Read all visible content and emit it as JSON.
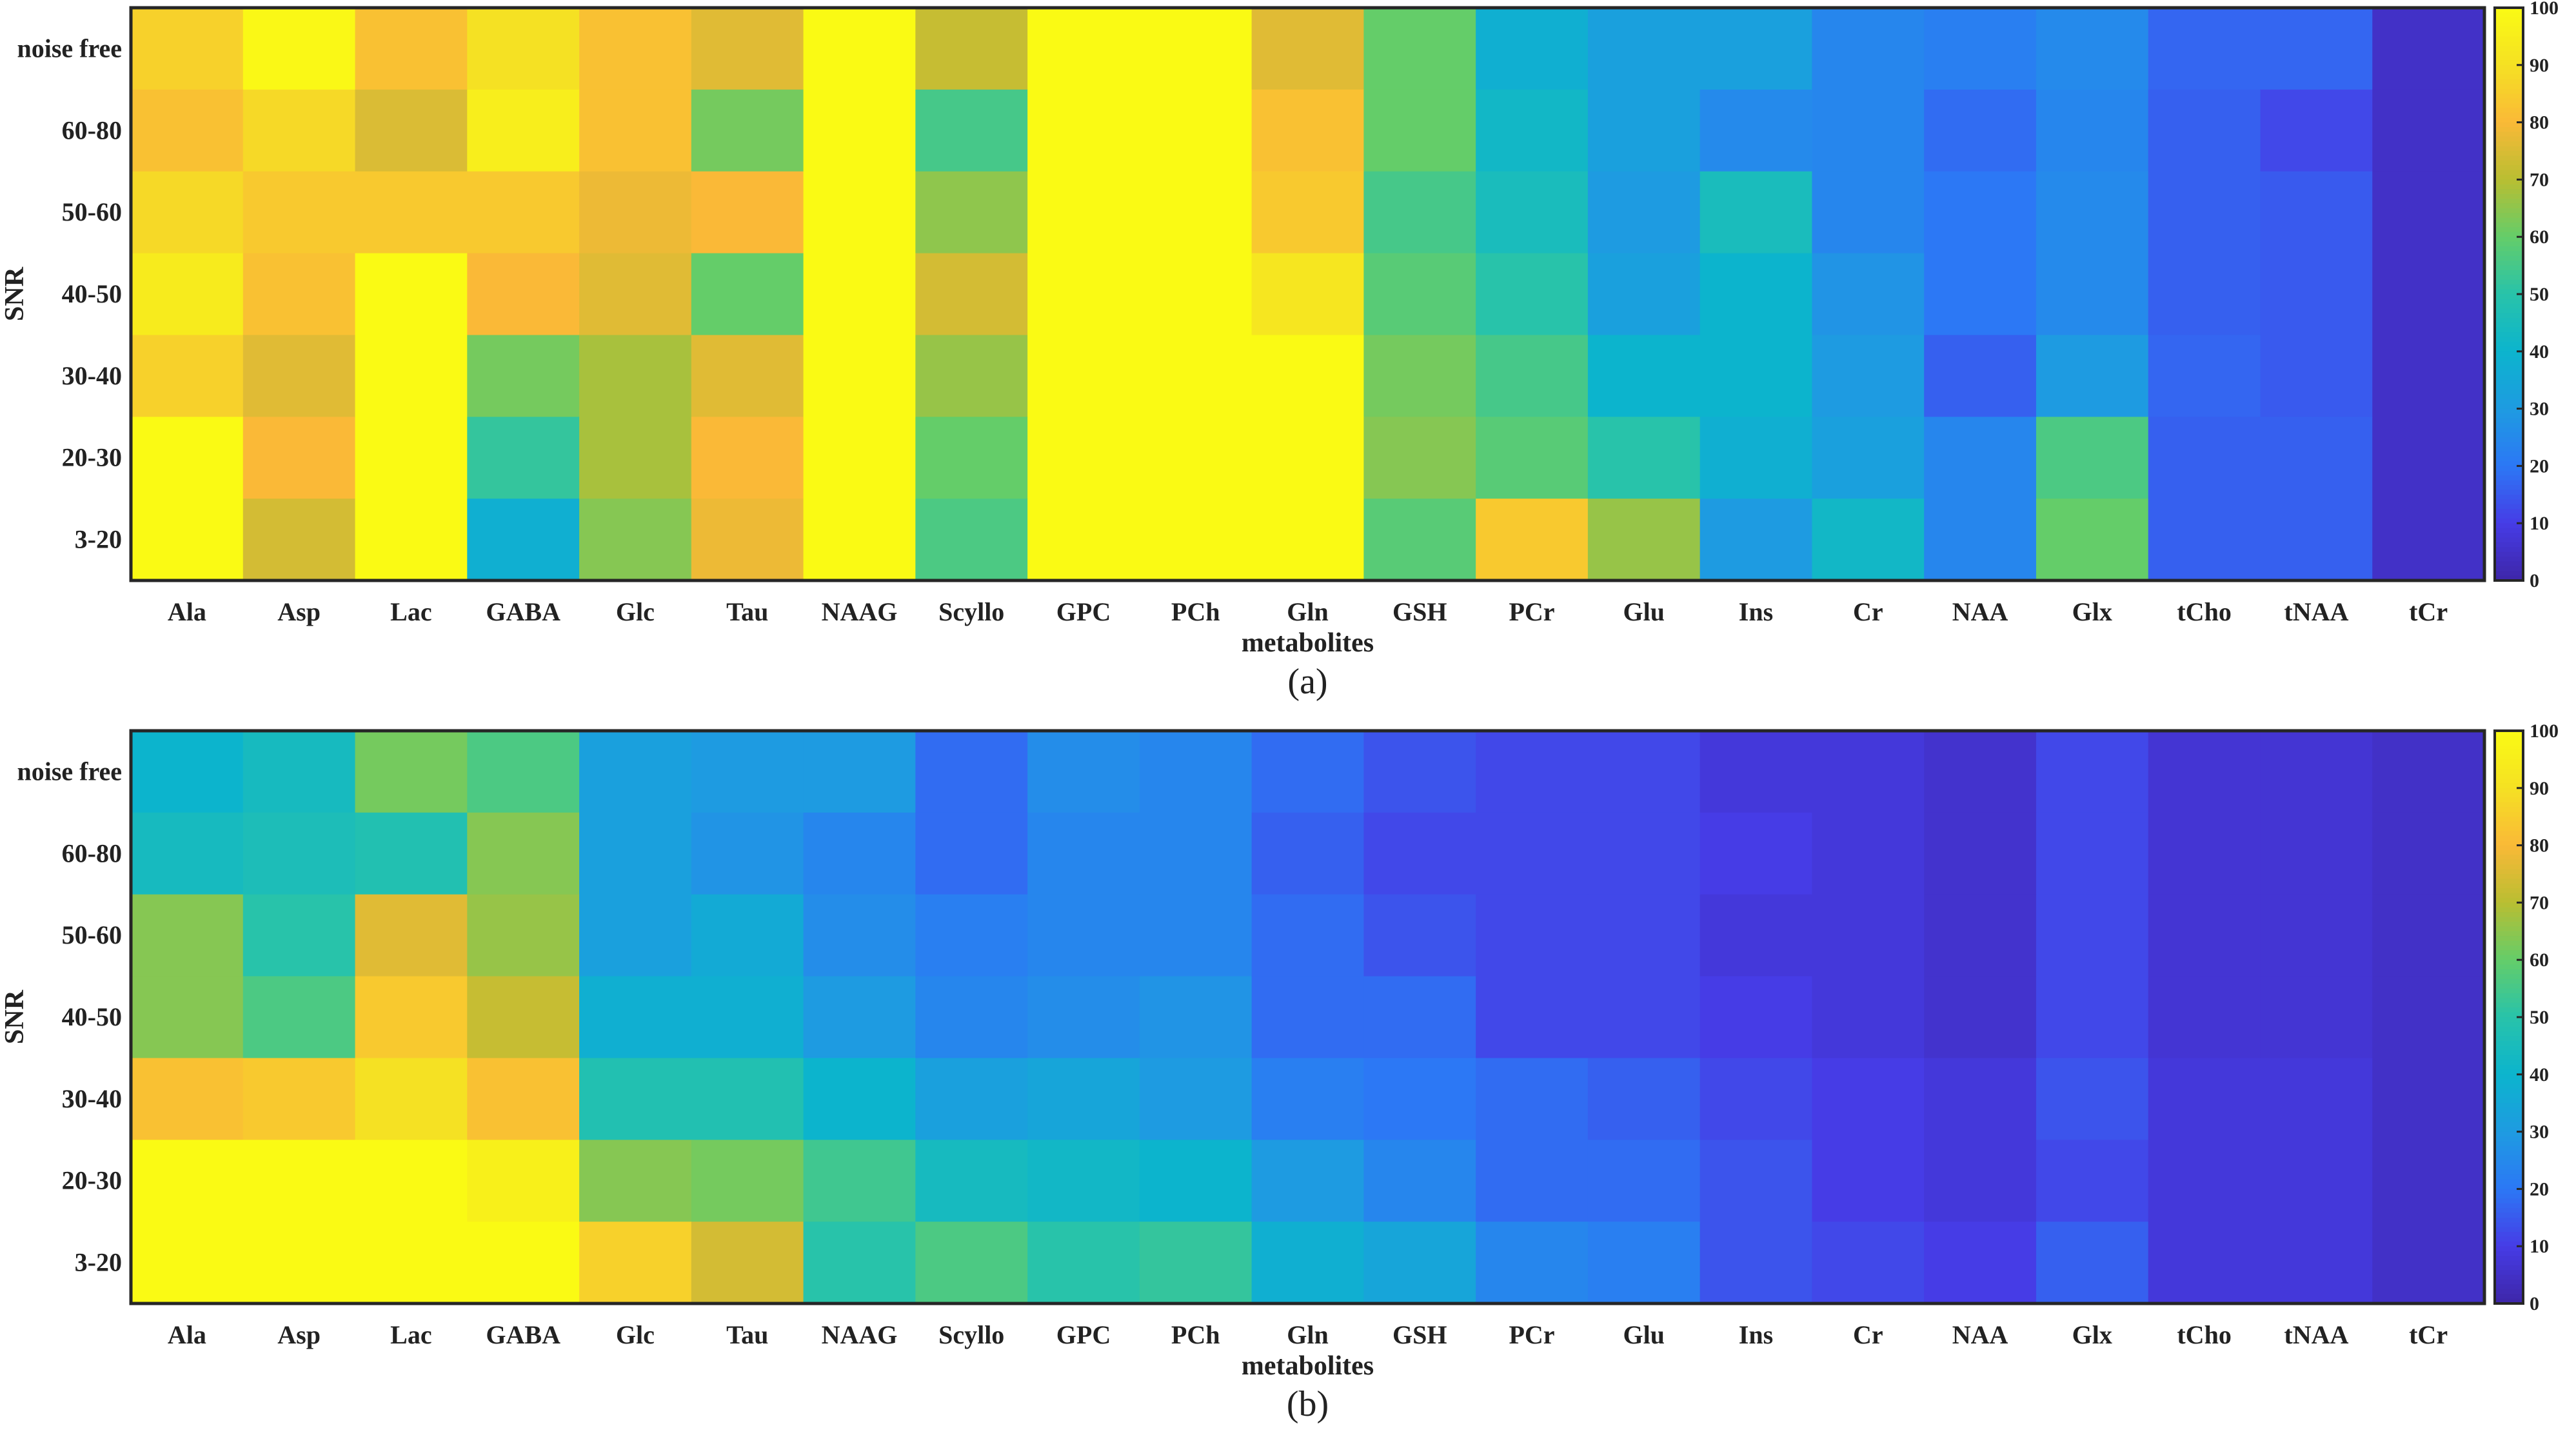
{
  "chart_data": [
    {
      "type": "heatmap",
      "panel_label": "(a)",
      "xlabel": "metabolites",
      "ylabel": "SNR",
      "x_categories": [
        "Ala",
        "Asp",
        "Lac",
        "GABA",
        "Glc",
        "Tau",
        "NAAG",
        "Scyllo",
        "GPC",
        "PCh",
        "Gln",
        "GSH",
        "PCr",
        "Glu",
        "Ins",
        "Cr",
        "NAA",
        "Glx",
        "tCho",
        "tNAA",
        "tCr"
      ],
      "y_categories": [
        "noise free",
        "60-80",
        "50-60",
        "40-50",
        "30-40",
        "20-30",
        "3-20"
      ],
      "colorbar": {
        "min": 0,
        "max": 100,
        "ticks": [
          "0",
          "10",
          "20",
          "30",
          "40",
          "50",
          "60",
          "70",
          "80",
          "90",
          "100"
        ],
        "colormap": "parula"
      },
      "values": [
        [
          86,
          99,
          82,
          90,
          82,
          76,
          100,
          72,
          100,
          100,
          76,
          60,
          38,
          32,
          32,
          24,
          22,
          25,
          17,
          17,
          5
        ],
        [
          82,
          88,
          75,
          95,
          82,
          62,
          100,
          55,
          100,
          100,
          82,
          60,
          42,
          32,
          25,
          24,
          18,
          24,
          16,
          12,
          5
        ],
        [
          88,
          84,
          84,
          84,
          78,
          80,
          100,
          65,
          100,
          100,
          84,
          55,
          45,
          30,
          45,
          24,
          20,
          25,
          16,
          15,
          5
        ],
        [
          94,
          82,
          100,
          80,
          76,
          60,
          100,
          74,
          100,
          100,
          92,
          58,
          50,
          32,
          40,
          28,
          20,
          25,
          16,
          15,
          5
        ],
        [
          86,
          76,
          100,
          62,
          68,
          76,
          100,
          66,
          100,
          100,
          100,
          62,
          55,
          40,
          40,
          30,
          16,
          30,
          17,
          15,
          5
        ],
        [
          100,
          80,
          100,
          52,
          68,
          80,
          100,
          60,
          100,
          100,
          100,
          64,
          58,
          50,
          38,
          32,
          24,
          56,
          16,
          16,
          5
        ],
        [
          100,
          74,
          100,
          38,
          64,
          78,
          100,
          56,
          100,
          100,
          100,
          58,
          84,
          66,
          30,
          42,
          24,
          60,
          16,
          16,
          5
        ]
      ]
    },
    {
      "type": "heatmap",
      "panel_label": "(b)",
      "xlabel": "metabolites",
      "ylabel": "SNR",
      "x_categories": [
        "Ala",
        "Asp",
        "Lac",
        "GABA",
        "Glc",
        "Tau",
        "NAAG",
        "Scyllo",
        "GPC",
        "PCh",
        "Gln",
        "GSH",
        "PCr",
        "Glu",
        "Ins",
        "Cr",
        "NAA",
        "Glx",
        "tCho",
        "tNAA",
        "tCr"
      ],
      "y_categories": [
        "noise free",
        "60-80",
        "50-60",
        "40-50",
        "30-40",
        "20-30",
        "3-20"
      ],
      "colorbar": {
        "min": 0,
        "max": 100,
        "ticks": [
          "0",
          "10",
          "20",
          "30",
          "40",
          "50",
          "60",
          "70",
          "80",
          "90",
          "100"
        ],
        "colormap": "parula"
      },
      "values": [
        [
          40,
          44,
          62,
          56,
          32,
          30,
          30,
          18,
          26,
          24,
          18,
          14,
          12,
          12,
          8,
          8,
          6,
          12,
          7,
          7,
          5
        ],
        [
          44,
          46,
          48,
          64,
          32,
          28,
          24,
          18,
          24,
          24,
          16,
          12,
          12,
          12,
          10,
          8,
          6,
          12,
          7,
          7,
          5
        ],
        [
          64,
          50,
          76,
          66,
          32,
          36,
          26,
          22,
          24,
          24,
          18,
          14,
          12,
          12,
          8,
          8,
          6,
          12,
          7,
          7,
          5
        ],
        [
          64,
          56,
          84,
          72,
          38,
          38,
          30,
          24,
          26,
          28,
          18,
          18,
          12,
          12,
          10,
          8,
          6,
          12,
          7,
          7,
          5
        ],
        [
          82,
          84,
          90,
          82,
          48,
          48,
          40,
          32,
          34,
          30,
          22,
          20,
          18,
          16,
          12,
          10,
          8,
          14,
          8,
          8,
          5
        ],
        [
          100,
          100,
          100,
          96,
          64,
          62,
          54,
          44,
          42,
          40,
          30,
          24,
          18,
          18,
          14,
          10,
          8,
          12,
          8,
          8,
          5
        ],
        [
          100,
          100,
          100,
          100,
          86,
          74,
          50,
          56,
          50,
          52,
          38,
          34,
          24,
          22,
          14,
          12,
          10,
          16,
          8,
          8,
          5
        ]
      ]
    }
  ]
}
